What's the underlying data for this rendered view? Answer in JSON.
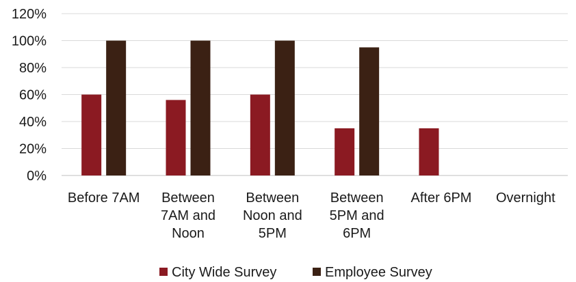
{
  "chart_data": {
    "type": "bar",
    "categories": [
      [
        "Before 7AM"
      ],
      [
        "Between",
        "7AM and",
        "Noon"
      ],
      [
        "Between",
        "Noon and",
        "5PM"
      ],
      [
        "Between",
        "5PM and",
        "6PM"
      ],
      [
        "After 6PM"
      ],
      [
        "Overnight"
      ]
    ],
    "series": [
      {
        "name": "City Wide Survey",
        "color": "#8b1a22",
        "values": [
          60,
          56,
          60,
          35,
          35,
          0
        ]
      },
      {
        "name": "Employee Survey",
        "color": "#3b2114",
        "values": [
          100,
          100,
          100,
          95,
          0,
          0
        ]
      }
    ],
    "ylim": [
      0,
      120
    ],
    "yticks": [
      0,
      20,
      40,
      60,
      80,
      100,
      120
    ],
    "ytick_labels": [
      "0%",
      "20%",
      "40%",
      "60%",
      "80%",
      "100%",
      "120%"
    ],
    "grid": true,
    "legend": "bottom",
    "title": "",
    "xlabel": "",
    "ylabel": ""
  }
}
